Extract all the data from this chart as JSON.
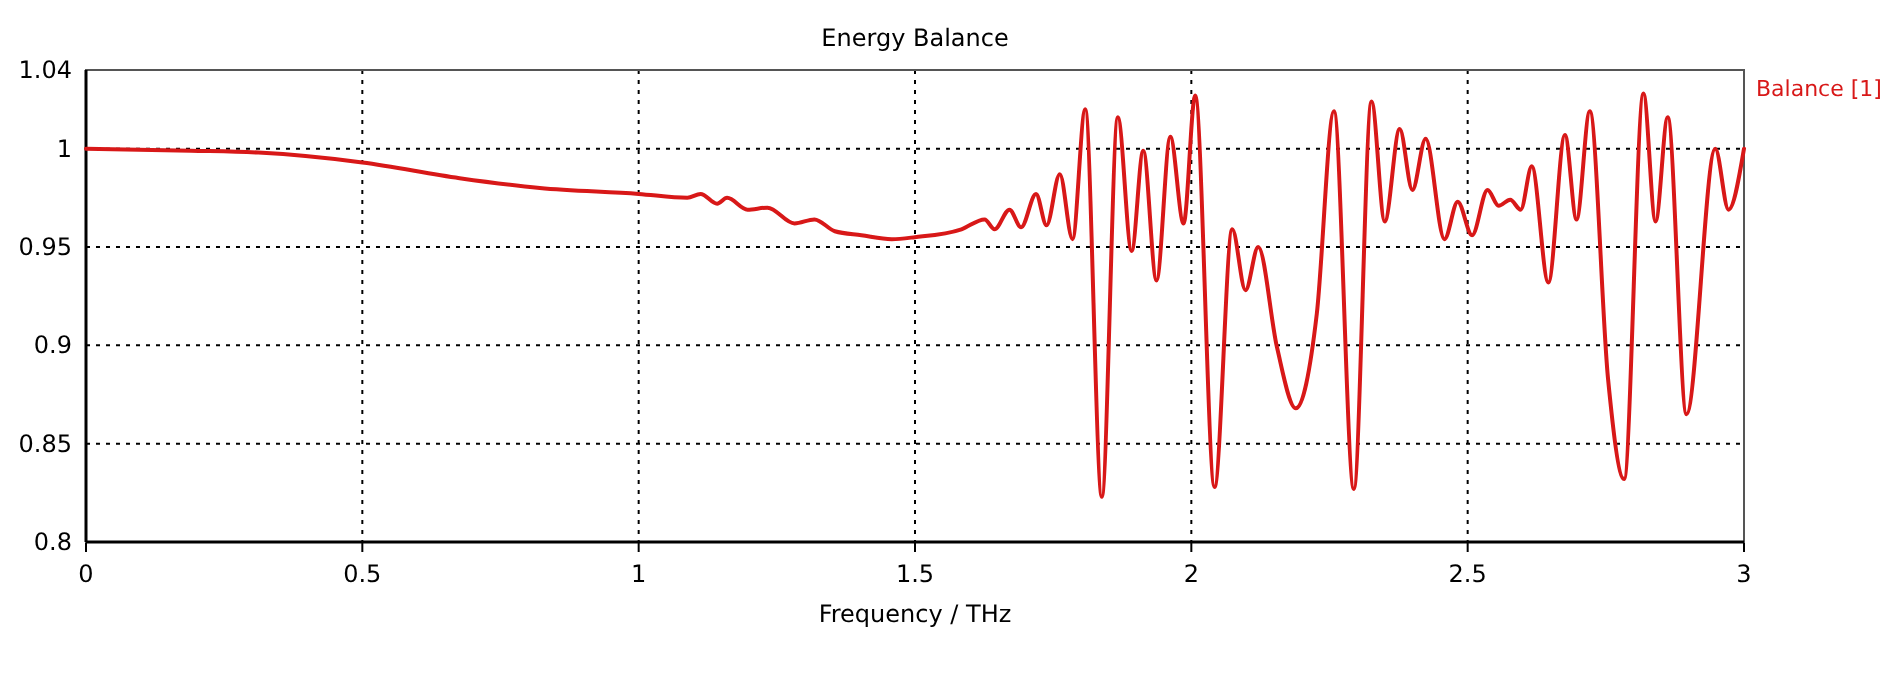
{
  "chart_data": {
    "type": "line",
    "title": "Energy Balance",
    "xlabel": "Frequency / THz",
    "xlim": [
      0,
      3
    ],
    "xticks": [
      0,
      0.5,
      1,
      1.5,
      2,
      2.5,
      3
    ],
    "ylim": [
      0.8,
      1.04
    ],
    "yticks": [
      0.8,
      0.85,
      0.9,
      0.95,
      1,
      1.04
    ],
    "grid": true,
    "legend": "top right",
    "line_style": "solid",
    "series": [
      {
        "name": "Balance [1]",
        "color": "#d81818",
        "x": [
          0,
          0.19,
          0.312,
          0.5,
          0.676,
          0.821,
          1.0,
          1.088,
          1.112,
          1.142,
          1.16,
          1.197,
          1.233,
          1.282,
          1.318,
          1.355,
          1.403,
          1.458,
          1.5,
          1.584,
          1.626,
          1.644,
          1.671,
          1.692,
          1.719,
          1.738,
          1.762,
          1.785,
          1.808,
          1.838,
          1.867,
          1.892,
          1.913,
          1.937,
          1.962,
          1.986,
          2.007,
          2.042,
          2.074,
          2.098,
          2.121,
          2.155,
          2.189,
          2.227,
          2.258,
          2.294,
          2.326,
          2.35,
          2.377,
          2.4,
          2.424,
          2.458,
          2.482,
          2.508,
          2.536,
          2.556,
          2.577,
          2.596,
          2.616,
          2.646,
          2.676,
          2.697,
          2.721,
          2.754,
          2.783,
          2.818,
          2.84,
          2.862,
          2.896,
          2.948,
          2.972,
          3.0
        ],
        "values": [
          1.0,
          0.999,
          0.998,
          0.993,
          0.985,
          0.98,
          0.977,
          0.975,
          0.977,
          0.972,
          0.975,
          0.969,
          0.97,
          0.962,
          0.964,
          0.958,
          0.956,
          0.954,
          0.955,
          0.959,
          0.964,
          0.959,
          0.969,
          0.96,
          0.977,
          0.961,
          0.987,
          0.954,
          1.02,
          0.823,
          1.016,
          0.948,
          0.999,
          0.933,
          1.006,
          0.962,
          1.027,
          0.828,
          0.959,
          0.928,
          0.95,
          0.899,
          0.868,
          0.916,
          1.019,
          0.827,
          1.024,
          0.963,
          1.01,
          0.979,
          1.005,
          0.954,
          0.973,
          0.956,
          0.979,
          0.971,
          0.974,
          0.969,
          0.991,
          0.932,
          1.007,
          0.964,
          1.019,
          0.883,
          0.832,
          1.028,
          0.963,
          1.016,
          0.865,
          1.0,
          0.969,
          1.0
        ]
      }
    ]
  }
}
